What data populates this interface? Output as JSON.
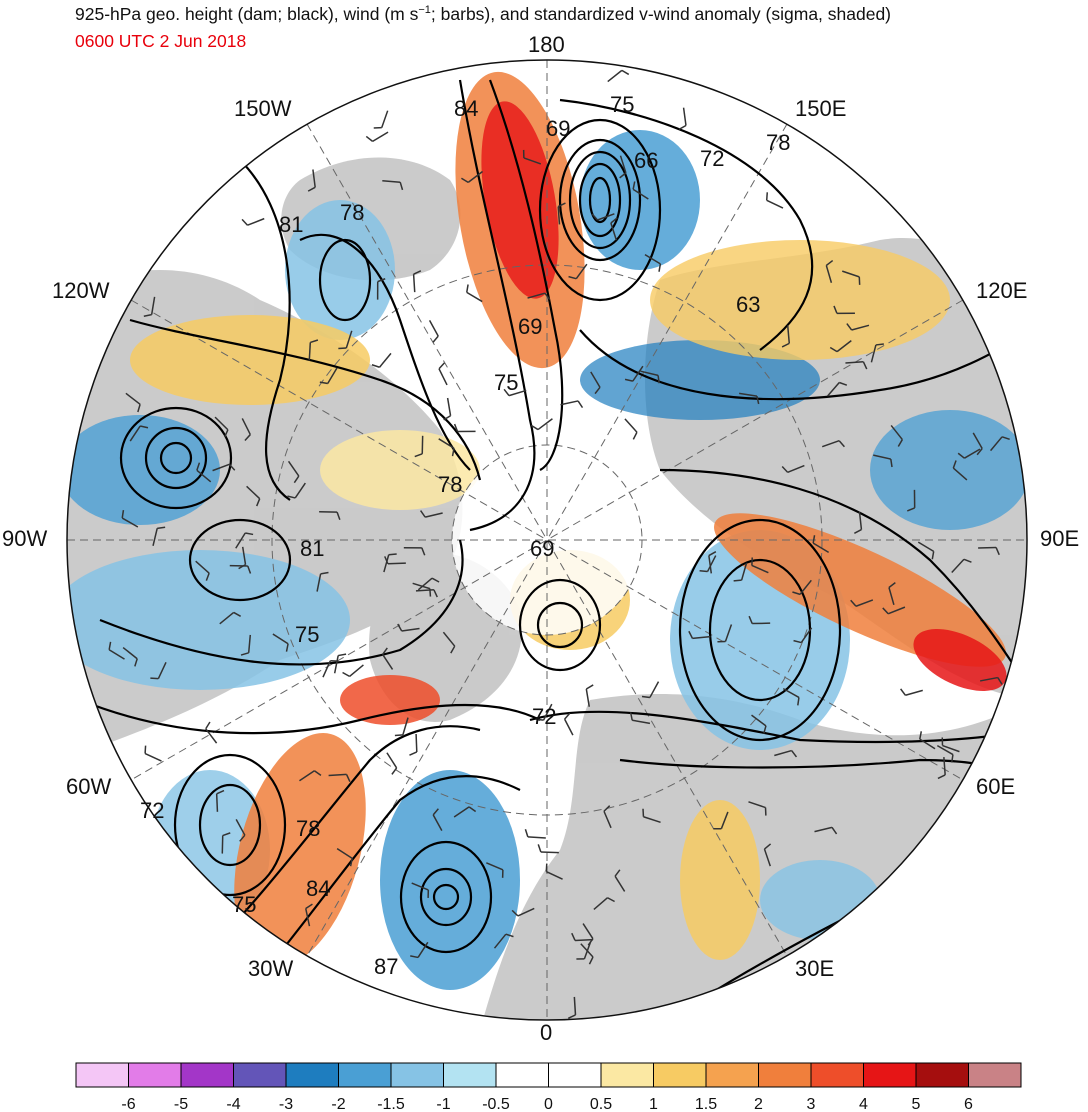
{
  "header": {
    "title_main": "925-hPa geo. height (dam; black), wind (m s",
    "title_sup": "−1",
    "title_rest": "; barbs), and standardized v-wind anomaly (sigma, shaded)",
    "time_label": "0600 UTC 2 Jun 2018",
    "time_color": "#e8000b"
  },
  "map": {
    "projection": "north polar stereographic",
    "longitude_labels": [
      {
        "id": "180",
        "text": "180"
      },
      {
        "id": "150w",
        "text": "150W"
      },
      {
        "id": "150e",
        "text": "150E"
      },
      {
        "id": "120w",
        "text": "120W"
      },
      {
        "id": "120e",
        "text": "120E"
      },
      {
        "id": "90w",
        "text": "90W"
      },
      {
        "id": "90e",
        "text": "90E"
      },
      {
        "id": "60w",
        "text": "60W"
      },
      {
        "id": "60e",
        "text": "60E"
      },
      {
        "id": "30w",
        "text": "30W"
      },
      {
        "id": "30e",
        "text": "30E"
      },
      {
        "id": "0",
        "text": "0"
      }
    ],
    "contour_labels": [
      "84",
      "75",
      "78",
      "69",
      "66",
      "72",
      "81",
      "78",
      "63",
      "69",
      "75",
      "78",
      "81",
      "69",
      "75",
      "72",
      "72",
      "78",
      "84",
      "75",
      "87"
    ],
    "land_color": "#c8c8c8",
    "ocean_color": "#ffffff"
  },
  "colorbar": {
    "ticks": [
      "-6",
      "-5",
      "-4",
      "-3",
      "-2",
      "-1.5",
      "-1",
      "-0.5",
      "0",
      "0.5",
      "1",
      "1.5",
      "2",
      "3",
      "4",
      "5",
      "6"
    ],
    "colors": [
      "#f4c6f6",
      "#e27ce8",
      "#a336c8",
      "#6355b8",
      "#1e7dbf",
      "#4a9fd4",
      "#86c3e5",
      "#b3e3f2",
      "#ffffff",
      "#ffffff",
      "#fbe8a3",
      "#f7cb63",
      "#f5a24f",
      "#f07f3c",
      "#ee4e2a",
      "#e61516",
      "#a50e0e",
      "#c98286"
    ]
  }
}
